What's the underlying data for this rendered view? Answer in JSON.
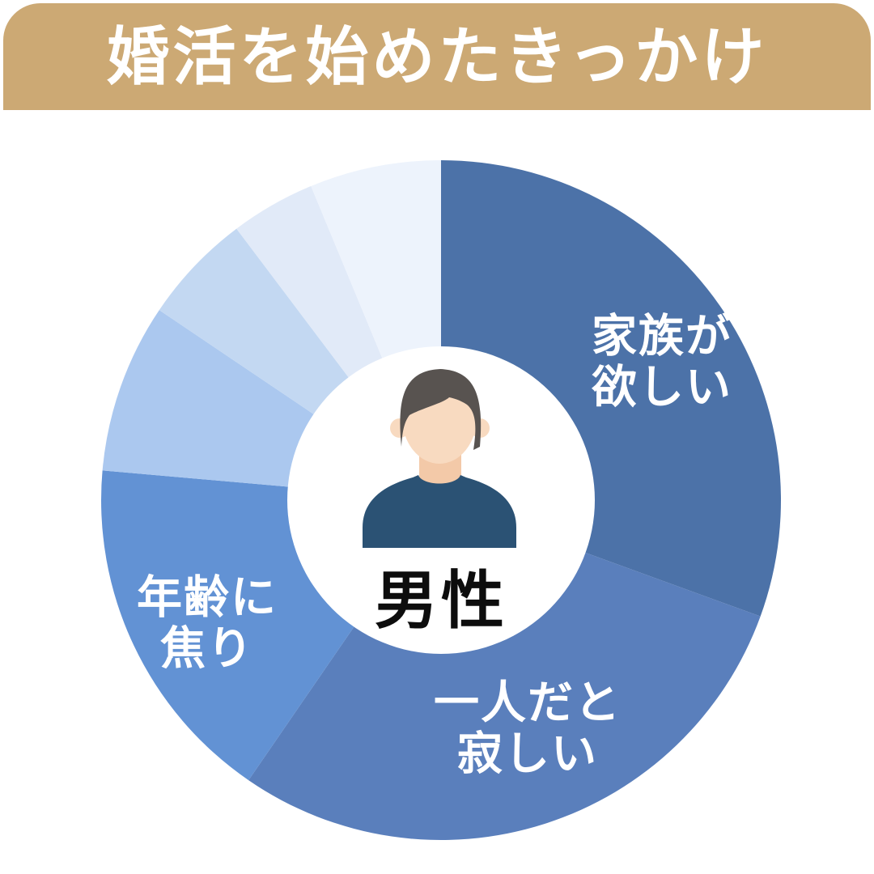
{
  "title": {
    "text": "婚活を始めたきっかけ",
    "bg_color": "#CCA974",
    "text_color": "#FFFFFF"
  },
  "center": {
    "label": "男性",
    "avatar": "male-avatar"
  },
  "avatar_colors": {
    "skin": "#F8DAC0",
    "neck_shadow": "#F3C9A8",
    "hair": "#585350",
    "shirt": "#2B5274",
    "background": "#FFFFFF"
  },
  "chart_data": {
    "type": "pie",
    "subtype": "donut",
    "title": "婚活を始めたきっかけ",
    "group": "男性",
    "direction": "clockwise",
    "start_angle_deg": 0,
    "legend": "none",
    "segments": [
      {
        "label": "家族が欲しい",
        "label_lines": "家族が\n欲しい",
        "percent": 30.5,
        "degrees": 110.0,
        "color": "#4C72A8"
      },
      {
        "label": "一人だと寂しい",
        "label_lines": "一人だと\n寂しい",
        "percent": 29.0,
        "degrees": 104.5,
        "color": "#5A7FBC"
      },
      {
        "label": "年齢に焦り",
        "label_lines": "年齢に\n焦り",
        "percent": 16.8,
        "degrees": 60.5,
        "color": "#6292D4"
      },
      {
        "label": "",
        "label_lines": "",
        "percent": 8.1,
        "degrees": 29.0,
        "color": "#ABC8EF"
      },
      {
        "label": "",
        "label_lines": "",
        "percent": 5.3,
        "degrees": 19.0,
        "color": "#C3D8F2"
      },
      {
        "label": "",
        "label_lines": "",
        "percent": 4.0,
        "degrees": 14.5,
        "color": "#E1EAF8"
      },
      {
        "label": "",
        "label_lines": "",
        "percent": 6.3,
        "degrees": 22.5,
        "color": "#EDF3FC"
      }
    ]
  }
}
